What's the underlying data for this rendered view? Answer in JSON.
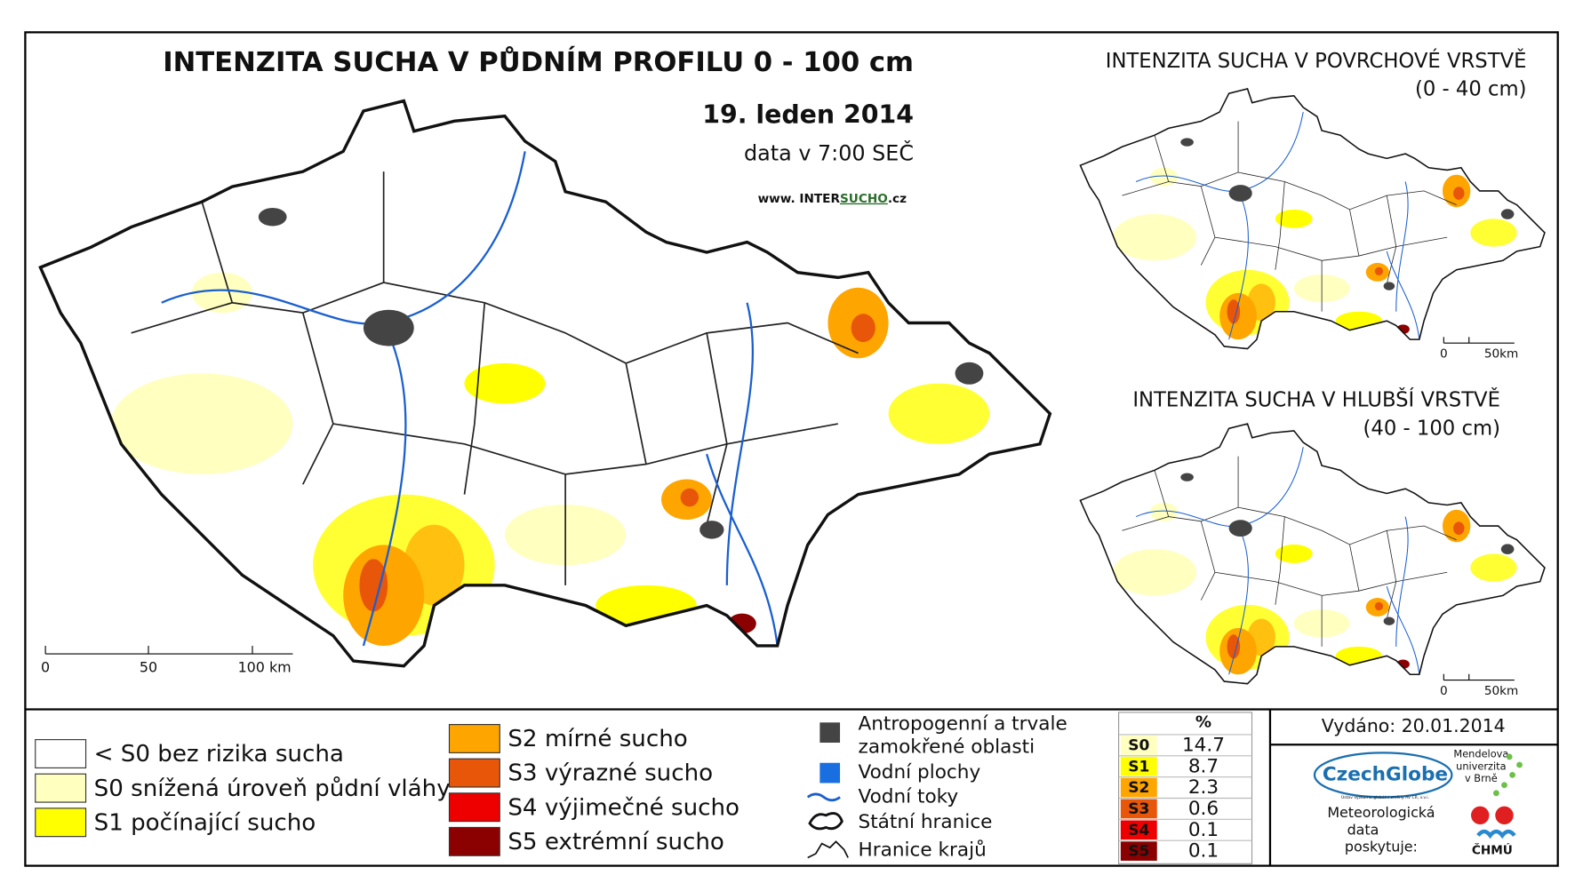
{
  "header": {
    "title": "INTENZITA SUCHA V PŮDNÍM PROFILU 0 - 100 cm",
    "date": "19. leden 2014",
    "data_time": "data v 7:00 SEČ",
    "website_prefix": "www. INTER",
    "website_highlight": "SUCHO",
    "website_suffix": ".cz"
  },
  "main_map": {
    "scale_labels": [
      "0",
      "50",
      "100 km"
    ]
  },
  "insets": [
    {
      "title": "INTENZITA SUCHA V POVRCHOVÉ VRSTVĚ",
      "subtitle": "(0 - 40 cm)",
      "scale_labels": [
        "0",
        "50km"
      ]
    },
    {
      "title": "INTENZITA SUCHA V HLUBŠÍ VRSTVĚ",
      "subtitle": "(40 - 100 cm)",
      "scale_labels": [
        "0",
        "50km"
      ]
    }
  ],
  "legend": {
    "classes": [
      {
        "label": "< S0 bez rizika sucha",
        "color": "#ffffff"
      },
      {
        "label": "S0 snížená úroveň půdní vláhy",
        "color": "#ffffc0"
      },
      {
        "label": "S1 počínající sucho",
        "color": "#ffff00"
      },
      {
        "label": "S2 mírné sucho",
        "color": "#ffa500"
      },
      {
        "label": "S3 výrazné sucho",
        "color": "#e8560a"
      },
      {
        "label": "S4 výjimečné sucho",
        "color": "#ee0000"
      },
      {
        "label": "S5 extrémní sucho",
        "color": "#8b0000"
      }
    ],
    "symbols": [
      {
        "lines": [
          "Antropogenní a trvale",
          "zamokřené oblasti"
        ]
      },
      {
        "lines": [
          "Vodní plochy"
        ]
      },
      {
        "lines": [
          "Vodní toky"
        ]
      },
      {
        "lines": [
          "Státní hranice"
        ]
      },
      {
        "lines": [
          "Hranice krajů"
        ]
      }
    ]
  },
  "stats": {
    "header": "%",
    "rows": [
      {
        "class": "S0",
        "percent": 14.7,
        "color": "#ffffc0"
      },
      {
        "class": "S1",
        "percent": 8.7,
        "color": "#ffff00"
      },
      {
        "class": "S2",
        "percent": 2.3,
        "color": "#ffa500"
      },
      {
        "class": "S3",
        "percent": 0.6,
        "color": "#e8560a"
      },
      {
        "class": "S4",
        "percent": 0.1,
        "color": "#ee0000"
      },
      {
        "class": "S5",
        "percent": 0.1,
        "color": "#8b0000"
      }
    ]
  },
  "footer": {
    "issued": "Vydáno: 20.01.2014",
    "czechglobe": "CzechGlobe",
    "czechglobe_sub": "Ústav výzkumu globální změny AV ČR, v.v.i.",
    "mendel": [
      "Mendelova",
      "univerzita",
      "v Brně"
    ],
    "data_note": [
      "Meteorologická",
      "data",
      "poskytuje:"
    ],
    "chmu": "ČHMÚ"
  }
}
